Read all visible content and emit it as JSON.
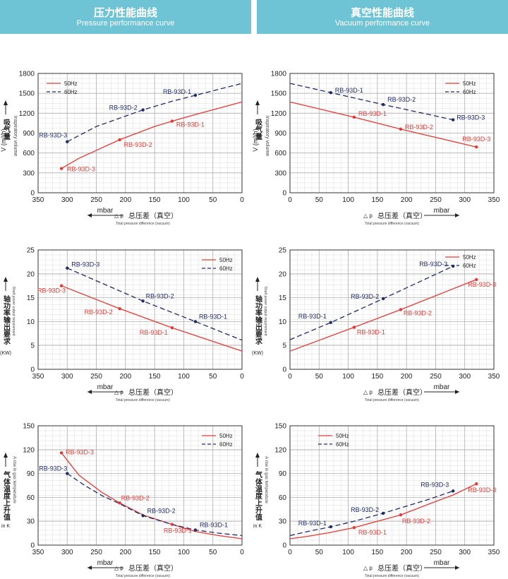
{
  "header": {
    "left_title": "压力性能曲线",
    "left_subtitle": "Pressure performance curve",
    "right_title": "真空性能曲线",
    "right_subtitle": "Vacuum performance curve"
  },
  "colors": {
    "hz50": "#e53935",
    "hz60": "#1f2a6b",
    "banner": "#6ec3d5",
    "grid": "#b0b0b0"
  },
  "xaxis_text": {
    "unit": "mbar",
    "delta_p": "△ p",
    "cn": "总压差（真空）",
    "en": "Total pressure difference (vacuum)"
  },
  "ylabels": {
    "volume_cn": "吸气量",
    "volume_unit": "V (m³/h)",
    "volume_en": "Inspiratory volume",
    "power_cn": "轴功率输出要求",
    "power_unit": "(KW)",
    "power_en": "Shaft power output requirement",
    "temp_cn": "气体温度上升值",
    "temp_unit": "in K",
    "temp_en": "A rise in gas temperature"
  },
  "legend": {
    "hz50": "50Hz",
    "hz60": "60Hz"
  },
  "chart_data": [
    {
      "id": "pressure-volume",
      "type": "line",
      "x_reversed": true,
      "xlim": [
        0,
        350
      ],
      "xticks": [
        350,
        300,
        250,
        200,
        150,
        100,
        50,
        0
      ],
      "ylim": [
        0,
        1800
      ],
      "yticks": [
        0,
        300,
        600,
        900,
        1200,
        1500,
        1800
      ],
      "series": [
        {
          "name": "50Hz",
          "dash": false,
          "x": [
            310,
            280,
            210,
            150,
            120,
            80,
            0
          ],
          "y": [
            365,
            520,
            800,
            1000,
            1080,
            1180,
            1370
          ]
        },
        {
          "name": "60Hz",
          "dash": true,
          "x": [
            300,
            250,
            170,
            120,
            80,
            0
          ],
          "y": [
            770,
            1000,
            1250,
            1380,
            1470,
            1650
          ]
        }
      ],
      "points": [
        {
          "x": 310,
          "y": 365,
          "s": "hz50",
          "label": "RB-93D-3",
          "dx": 8,
          "dy": 4
        },
        {
          "x": 210,
          "y": 800,
          "s": "hz50",
          "label": "RB-93D-2",
          "dx": 6,
          "dy": 10
        },
        {
          "x": 120,
          "y": 1080,
          "s": "hz50",
          "label": "RB-93D-1",
          "dx": 6,
          "dy": 8
        },
        {
          "x": 300,
          "y": 770,
          "s": "hz60",
          "label": "RB-93D-3",
          "dx": -40,
          "dy": -6
        },
        {
          "x": 170,
          "y": 1250,
          "s": "hz60",
          "label": "RB-93D-2",
          "dx": -48,
          "dy": 0
        },
        {
          "x": 80,
          "y": 1470,
          "s": "hz60",
          "label": "RB-93D-1",
          "dx": -46,
          "dy": -2
        }
      ]
    },
    {
      "id": "vacuum-volume",
      "type": "line",
      "x_reversed": false,
      "xlim": [
        0,
        350
      ],
      "xticks": [
        0,
        50,
        100,
        150,
        200,
        250,
        300,
        350
      ],
      "ylim": [
        0,
        1800
      ],
      "yticks": [
        0,
        300,
        600,
        900,
        1200,
        1500,
        1800
      ],
      "series": [
        {
          "name": "50Hz",
          "dash": false,
          "x": [
            0,
            110,
            190,
            320
          ],
          "y": [
            1370,
            1140,
            960,
            690
          ]
        },
        {
          "name": "60Hz",
          "dash": true,
          "x": [
            0,
            70,
            160,
            280
          ],
          "y": [
            1650,
            1510,
            1330,
            1100
          ]
        }
      ],
      "points": [
        {
          "x": 110,
          "y": 1140,
          "s": "hz50",
          "label": "RB-93D-1",
          "dx": 6,
          "dy": -2
        },
        {
          "x": 190,
          "y": 960,
          "s": "hz50",
          "label": "RB-93D-2",
          "dx": 6,
          "dy": 0
        },
        {
          "x": 320,
          "y": 690,
          "s": "hz50",
          "label": "RB-93D-3",
          "dx": -20,
          "dy": -8
        },
        {
          "x": 70,
          "y": 1510,
          "s": "hz60",
          "label": "RB-93D-1",
          "dx": 6,
          "dy": 0
        },
        {
          "x": 160,
          "y": 1330,
          "s": "hz60",
          "label": "RB-93D-2",
          "dx": 6,
          "dy": -4
        },
        {
          "x": 280,
          "y": 1100,
          "s": "hz60",
          "label": "RB-93D-3",
          "dx": 5,
          "dy": 0
        }
      ]
    },
    {
      "id": "pressure-power",
      "type": "line",
      "x_reversed": true,
      "xlim": [
        0,
        350
      ],
      "xticks": [
        350,
        300,
        250,
        200,
        150,
        100,
        50,
        0
      ],
      "ylim": [
        0,
        25
      ],
      "yticks": [
        0,
        5,
        10,
        15,
        20,
        25
      ],
      "series": [
        {
          "name": "50Hz",
          "dash": false,
          "x": [
            310,
            210,
            120,
            0
          ],
          "y": [
            17.5,
            12.7,
            8.7,
            3.8
          ]
        },
        {
          "name": "60Hz",
          "dash": true,
          "x": [
            300,
            170,
            80,
            0
          ],
          "y": [
            21.2,
            14.3,
            10.0,
            6.1
          ]
        }
      ],
      "points": [
        {
          "x": 310,
          "y": 17.5,
          "s": "hz50",
          "label": "RB-93D-3",
          "dx": -34,
          "dy": 10
        },
        {
          "x": 210,
          "y": 12.7,
          "s": "hz50",
          "label": "RB-93D-2",
          "dx": -50,
          "dy": 8
        },
        {
          "x": 120,
          "y": 8.7,
          "s": "hz50",
          "label": "RB-93D-1",
          "dx": -46,
          "dy": 10
        },
        {
          "x": 300,
          "y": 21.2,
          "s": "hz60",
          "label": "RB-93D-3",
          "dx": 6,
          "dy": -2
        },
        {
          "x": 170,
          "y": 14.3,
          "s": "hz60",
          "label": "RB-93D-2",
          "dx": 4,
          "dy": -4
        },
        {
          "x": 80,
          "y": 10.0,
          "s": "hz60",
          "label": "RB-93D-1",
          "dx": 5,
          "dy": -4
        }
      ]
    },
    {
      "id": "vacuum-power",
      "type": "line",
      "x_reversed": false,
      "xlim": [
        0,
        350
      ],
      "xticks": [
        0,
        50,
        100,
        150,
        200,
        250,
        300,
        350
      ],
      "ylim": [
        0,
        25
      ],
      "yticks": [
        0,
        5,
        10,
        15,
        20,
        25
      ],
      "series": [
        {
          "name": "50Hz",
          "dash": false,
          "x": [
            0,
            110,
            190,
            320
          ],
          "y": [
            3.8,
            8.8,
            12.5,
            18.8
          ]
        },
        {
          "name": "60Hz",
          "dash": true,
          "x": [
            0,
            70,
            160,
            280
          ],
          "y": [
            6.2,
            9.8,
            14.8,
            21.6
          ]
        }
      ],
      "points": [
        {
          "x": 110,
          "y": 8.8,
          "s": "hz50",
          "label": "RB-93D-1",
          "dx": 4,
          "dy": 10
        },
        {
          "x": 190,
          "y": 12.5,
          "s": "hz50",
          "label": "RB-93D-2",
          "dx": 4,
          "dy": 8
        },
        {
          "x": 320,
          "y": 18.8,
          "s": "hz50",
          "label": "RB-93D-3",
          "dx": -12,
          "dy": 10
        },
        {
          "x": 70,
          "y": 9.8,
          "s": "hz60",
          "label": "RB-93D-1",
          "dx": -46,
          "dy": -6
        },
        {
          "x": 160,
          "y": 14.8,
          "s": "hz60",
          "label": "RB-93D-2",
          "dx": -46,
          "dy": 0
        },
        {
          "x": 280,
          "y": 21.6,
          "s": "hz60",
          "label": "RB-93D-3",
          "dx": -48,
          "dy": 0
        }
      ]
    },
    {
      "id": "pressure-temp",
      "type": "line",
      "x_reversed": true,
      "xlim": [
        0,
        350
      ],
      "xticks": [
        350,
        300,
        250,
        200,
        150,
        100,
        50,
        0
      ],
      "ylim": [
        0,
        150
      ],
      "yticks": [
        0,
        30,
        60,
        90,
        120,
        150
      ],
      "series": [
        {
          "name": "50Hz",
          "dash": false,
          "x": [
            310,
            280,
            240,
            210,
            170,
            120,
            80,
            40,
            0
          ],
          "y": [
            116,
            88,
            66,
            53,
            38,
            26,
            17,
            12,
            8
          ]
        },
        {
          "name": "60Hz",
          "dash": true,
          "x": [
            300,
            270,
            240,
            210,
            170,
            120,
            80,
            40,
            0
          ],
          "y": [
            90,
            75,
            62,
            52,
            37,
            26,
            19,
            15,
            12
          ]
        }
      ],
      "points": [
        {
          "x": 310,
          "y": 116,
          "s": "hz50",
          "label": "RB-93D-3",
          "dx": 6,
          "dy": 2
        },
        {
          "x": 210,
          "y": 53,
          "s": "hz50",
          "label": "RB-93D-2",
          "dx": 2,
          "dy": -4
        },
        {
          "x": 120,
          "y": 26,
          "s": "hz50",
          "label": "RB-93D-1",
          "dx": -12,
          "dy": 12
        },
        {
          "x": 300,
          "y": 90,
          "s": "hz60",
          "label": "RB-93D-3",
          "dx": -40,
          "dy": -4
        },
        {
          "x": 170,
          "y": 37,
          "s": "hz60",
          "label": "RB-93D-2",
          "dx": 6,
          "dy": -4
        },
        {
          "x": 80,
          "y": 19,
          "s": "hz60",
          "label": "RB-93D-1",
          "dx": 6,
          "dy": -4
        }
      ]
    },
    {
      "id": "vacuum-temp",
      "type": "line",
      "x_reversed": false,
      "xlim": [
        0,
        350
      ],
      "xticks": [
        0,
        50,
        100,
        150,
        200,
        250,
        300,
        350
      ],
      "ylim": [
        0,
        150
      ],
      "yticks": [
        0,
        30,
        60,
        90,
        120,
        150
      ],
      "series": [
        {
          "name": "50Hz",
          "dash": false,
          "x": [
            0,
            30,
            70,
            110,
            150,
            190,
            240,
            280,
            320
          ],
          "y": [
            8,
            11,
            16,
            22,
            30,
            38,
            52,
            63,
            77
          ]
        },
        {
          "name": "60Hz",
          "dash": true,
          "x": [
            0,
            30,
            70,
            110,
            160,
            200,
            240,
            280
          ],
          "y": [
            12,
            17,
            23,
            30,
            40,
            49,
            58,
            68
          ]
        }
      ],
      "points": [
        {
          "x": 110,
          "y": 22,
          "s": "hz50",
          "label": "RB-93D-1",
          "dx": 6,
          "dy": 10
        },
        {
          "x": 190,
          "y": 38,
          "s": "hz50",
          "label": "RB-93D-2",
          "dx": 2,
          "dy": 12
        },
        {
          "x": 320,
          "y": 77,
          "s": "hz50",
          "label": "RB-93D-3",
          "dx": -12,
          "dy": 12
        },
        {
          "x": 70,
          "y": 23,
          "s": "hz60",
          "label": "RB-93D-1",
          "dx": -46,
          "dy": -2
        },
        {
          "x": 160,
          "y": 40,
          "s": "hz60",
          "label": "RB-93D-2",
          "dx": -46,
          "dy": -2
        },
        {
          "x": 280,
          "y": 68,
          "s": "hz60",
          "label": "RB-93D-3",
          "dx": -46,
          "dy": -6
        }
      ]
    }
  ]
}
